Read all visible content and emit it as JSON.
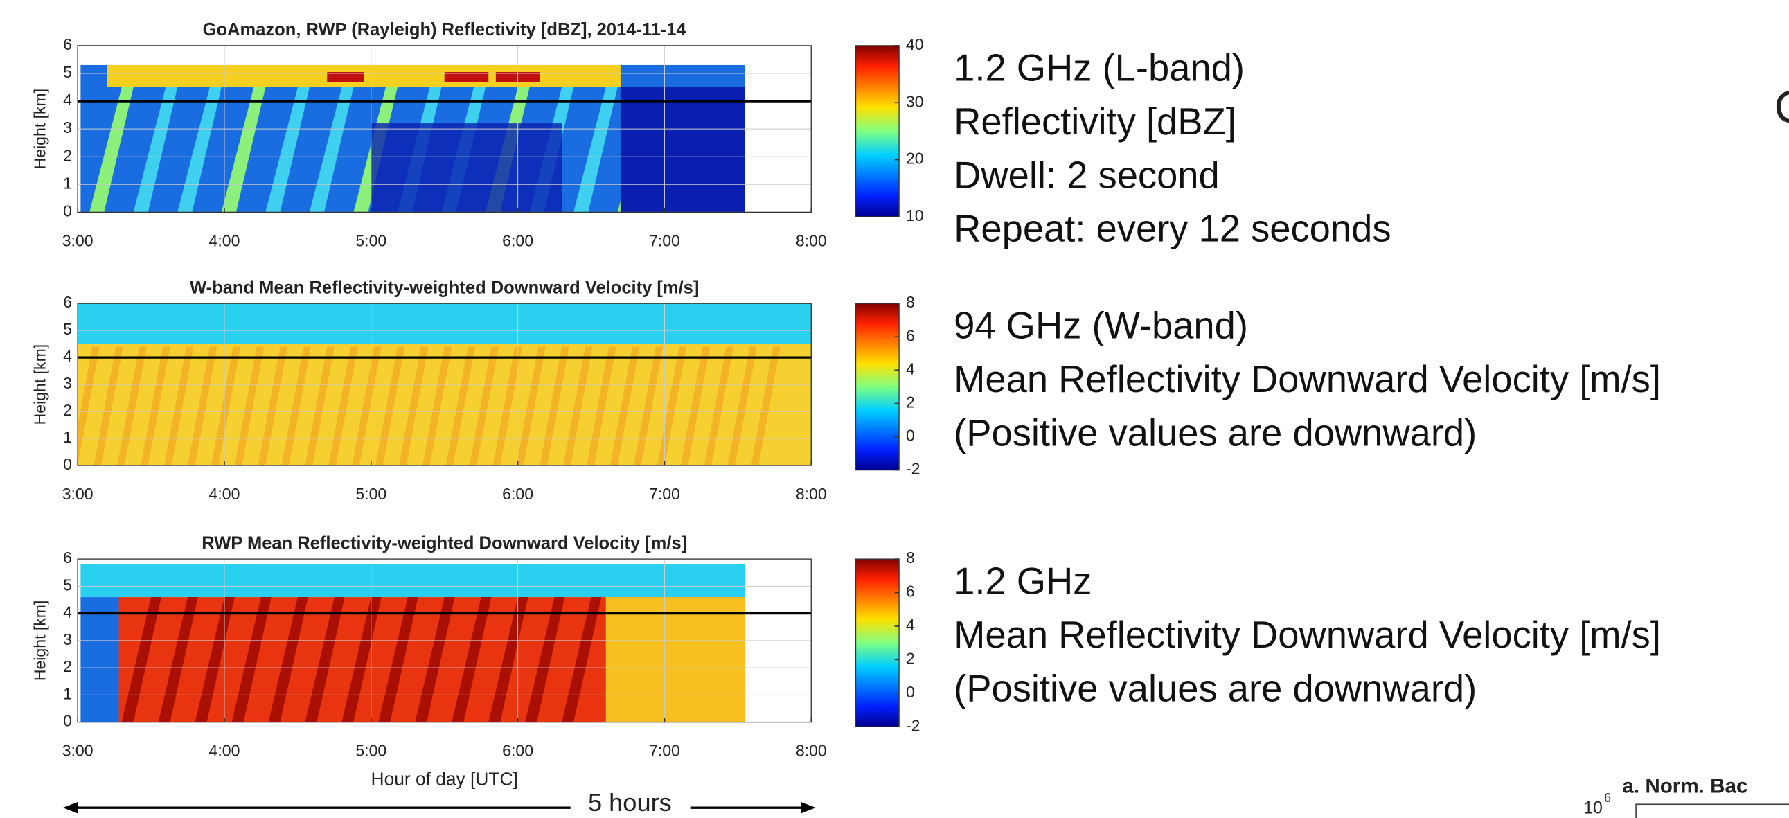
{
  "chart_data": [
    {
      "type": "heatmap",
      "title": "GoAmazon, RWP (Rayleigh) Reflectivity [dBZ], 2014-11-14",
      "ylabel": "Height [km]",
      "xlim": [
        3,
        8
      ],
      "xticks": [
        {
          "value": 3,
          "label": "3:00"
        },
        {
          "value": 4,
          "label": "4:00"
        },
        {
          "value": 5,
          "label": "5:00"
        },
        {
          "value": 6,
          "label": "6:00"
        },
        {
          "value": 7,
          "label": "7:00"
        },
        {
          "value": 8,
          "label": "8:00"
        }
      ],
      "ylim": [
        0,
        6
      ],
      "yticks": [
        0,
        1,
        2,
        3,
        4,
        5,
        6
      ],
      "grid": true,
      "hline": 4,
      "colorbar": {
        "lim": [
          10,
          40
        ],
        "ticks": [
          10,
          20,
          30,
          40
        ]
      },
      "description": [
        "1.2 GHz (L-band)",
        "Reflectivity [dBZ]",
        "Dwell: 2 second",
        "Repeat: every 12 seconds"
      ]
    },
    {
      "type": "heatmap",
      "title": "W-band Mean Reflectivity-weighted Downward Velocity [m/s]",
      "ylabel": "Height [km]",
      "xlim": [
        3,
        8
      ],
      "xticks": [
        {
          "value": 3,
          "label": "3:00"
        },
        {
          "value": 4,
          "label": "4:00"
        },
        {
          "value": 5,
          "label": "5:00"
        },
        {
          "value": 6,
          "label": "6:00"
        },
        {
          "value": 7,
          "label": "7:00"
        },
        {
          "value": 8,
          "label": "8:00"
        }
      ],
      "ylim": [
        0,
        6
      ],
      "yticks": [
        0,
        1,
        2,
        3,
        4,
        5,
        6
      ],
      "grid": true,
      "hline": 4,
      "colorbar": {
        "lim": [
          -2,
          8
        ],
        "ticks": [
          -2,
          0,
          2,
          4,
          6,
          8
        ]
      },
      "description": [
        "94 GHz (W-band)",
        "Mean Reflectivity Downward Velocity [m/s]",
        "(Positive values are downward)"
      ]
    },
    {
      "type": "heatmap",
      "title": "RWP Mean Reflectivity-weighted Downward Velocity [m/s]",
      "ylabel": "Height [km]",
      "xlabel": "Hour of day [UTC]",
      "xlim": [
        3,
        8
      ],
      "xticks": [
        {
          "value": 3,
          "label": "3:00"
        },
        {
          "value": 4,
          "label": "4:00"
        },
        {
          "value": 5,
          "label": "5:00"
        },
        {
          "value": 6,
          "label": "6:00"
        },
        {
          "value": 7,
          "label": "7:00"
        },
        {
          "value": 8,
          "label": "8:00"
        }
      ],
      "ylim": [
        0,
        6
      ],
      "yticks": [
        0,
        1,
        2,
        3,
        4,
        5,
        6
      ],
      "grid": true,
      "hline": 4,
      "colorbar": {
        "lim": [
          -2,
          8
        ],
        "ticks": [
          -2,
          0,
          2,
          4,
          6,
          8
        ]
      },
      "description": [
        "1.2 GHz",
        "Mean Reflectivity Downward Velocity [m/s]",
        "(Positive values are downward)"
      ]
    }
  ],
  "span_label": "5 hours",
  "cutoff": {
    "right_letter": "C",
    "next_title": "a. Norm. Bac",
    "next_tick": {
      "base": "10",
      "exponent": "6"
    }
  }
}
